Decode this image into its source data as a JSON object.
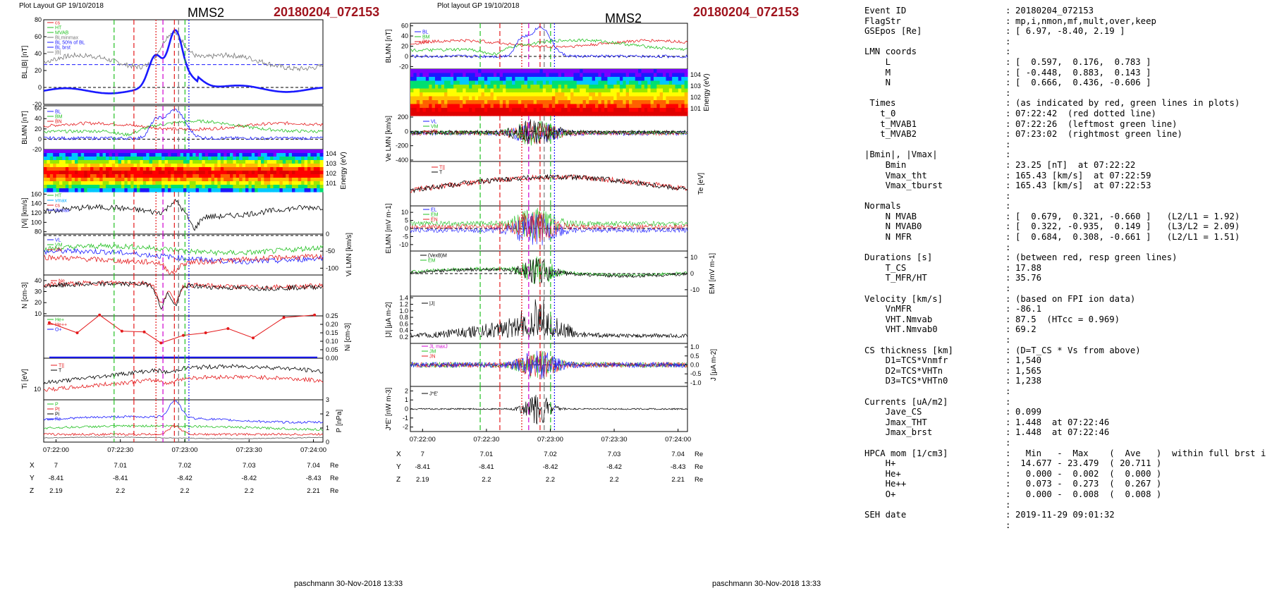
{
  "left": {
    "header_left": "Plot Layout GP 19/10/2018",
    "title": "MMS2",
    "event": "20180204_072153",
    "footer": "paschmann 30-Nov-2018 13:33"
  },
  "right": {
    "header_left": "Plot layout GP 19/10/2018",
    "title": "MMS2",
    "event": "20180204_072153",
    "footer": "paschmann 30-Nov-2018 13:33"
  },
  "colors": {
    "red": "#e41a1c",
    "green": "#22c022",
    "blue": "#1a1aff",
    "magenta": "#d000d0",
    "black": "#000000",
    "grey": "#777777"
  },
  "time_ticks": [
    "07:22:00",
    "07:22:30",
    "07:23:00",
    "07:23:30",
    "07:24:00"
  ],
  "ephemeris_left": {
    "X": {
      "label": "X",
      "vals": [
        "7",
        "7.01",
        "7.02",
        "7.03",
        "7.04"
      ],
      "unit": "Re"
    },
    "Y": {
      "label": "Y",
      "vals": [
        "-8.41",
        "-8.41",
        "-8.42",
        "-8.42",
        "-8.43"
      ],
      "unit": "Re"
    },
    "Z": {
      "label": "Z",
      "vals": [
        "2.19",
        "2.2",
        "2.2",
        "2.2",
        "2.21"
      ],
      "unit": "Re"
    }
  },
  "ephemeris_right": {
    "X": {
      "label": "X",
      "vals": [
        "7",
        "7.01",
        "7.02",
        "7.03",
        "7.04"
      ],
      "unit": "Re"
    },
    "Y": {
      "label": "Y",
      "vals": [
        "-8.41",
        "-8.41",
        "-8.42",
        "-8.42",
        "-8.43"
      ],
      "unit": "Re"
    },
    "Z": {
      "label": "Z",
      "vals": [
        "2.19",
        "2.2",
        "2.2",
        "2.2",
        "2.21"
      ],
      "unit": "Re"
    }
  },
  "chart_data": [
    {
      "type": "line",
      "panel": "left-1",
      "ylabel": "BL,|B| [nT]",
      "ylim": [
        -20,
        80
      ],
      "yticks": [
        -20,
        0,
        20,
        40,
        60,
        80
      ],
      "legend": [
        "cs",
        "HT",
        "MVAB",
        "BLminmax",
        "BL 50% of BL",
        "BL brst",
        "|B|"
      ]
    },
    {
      "type": "line",
      "panel": "left-2",
      "ylabel": "BLMN [nT]",
      "ylim": [
        -20,
        65
      ],
      "yticks": [
        -20,
        0,
        20,
        40,
        60
      ],
      "legend": [
        "BL",
        "BM",
        "BN"
      ]
    },
    {
      "type": "heatmap",
      "panel": "left-3",
      "ylabel": "Energy (eV)",
      "yticks": [
        "10^1",
        "10^2",
        "10^3",
        "10^4"
      ]
    },
    {
      "type": "line",
      "panel": "left-4",
      "ylabel": "|Vi| [km/s]",
      "ylim": [
        75,
        165
      ],
      "yticks": [
        80,
        100,
        120,
        140,
        160
      ],
      "legend": [
        "HT",
        "vmax",
        "cs",
        "dvmax"
      ]
    },
    {
      "type": "line",
      "panel": "left-5",
      "ylabel": "Vi LMN [km/s]",
      "ylim": [
        -120,
        0
      ],
      "yticks": [
        0,
        -50,
        -100
      ],
      "legend": [
        "VL",
        "VM",
        "VN"
      ]
    },
    {
      "type": "line",
      "panel": "left-6",
      "ylabel": "N [cm-3]",
      "ylim": [
        8,
        45
      ],
      "yticks": [
        10,
        20,
        30,
        40
      ],
      "legend": [
        "Ne",
        "Ni"
      ]
    },
    {
      "type": "line",
      "panel": "left-7",
      "ylabel": "Ni [cm-3]",
      "ylim": [
        0,
        0.25
      ],
      "yticks": [
        0.0,
        0.05,
        0.1,
        0.15,
        0.2,
        0.25
      ],
      "legend": [
        "He+",
        "He++",
        "O+"
      ]
    },
    {
      "type": "line",
      "panel": "left-8",
      "ylabel": "Ti [eV]",
      "ytick_labels": [
        "10^2"
      ],
      "legend": [
        "T||",
        "T"
      ]
    },
    {
      "type": "line",
      "panel": "left-9",
      "ylabel": "P [nPa]",
      "ylim": [
        0,
        3
      ],
      "yticks": [
        0,
        1,
        2,
        3
      ],
      "legend": [
        "P",
        "Pt",
        "Pi",
        "Pe"
      ]
    },
    {
      "type": "line",
      "panel": "right-1",
      "ylabel": "BLMN [nT]",
      "ylim": [
        -25,
        65
      ],
      "yticks": [
        -20,
        0,
        20,
        40,
        60
      ],
      "legend": [
        "BL",
        "BM",
        "BN"
      ]
    },
    {
      "type": "heatmap",
      "panel": "right-2",
      "ylabel": "Energy (eV)",
      "yticks": [
        "10^1",
        "10^2",
        "10^3",
        "10^4"
      ]
    },
    {
      "type": "line",
      "panel": "right-3",
      "ylabel": "Ve LMN [km/s]",
      "ylim": [
        -420,
        220
      ],
      "yticks": [
        200,
        0,
        -200,
        -400
      ],
      "legend": [
        "VL",
        "VM",
        "VN"
      ]
    },
    {
      "type": "line",
      "panel": "right-4",
      "ylabel": "Te [eV]",
      "legend": [
        "T||",
        "T"
      ]
    },
    {
      "type": "line",
      "panel": "right-5",
      "ylabel": "ELMN [mV m-1]",
      "ylim": [
        -14,
        14
      ],
      "yticks": [
        10,
        5,
        0,
        -5,
        -10
      ],
      "legend": [
        "EL",
        "EM",
        "EN"
      ]
    },
    {
      "type": "line",
      "panel": "right-6",
      "ylabel": "EM [mV m-1]",
      "ylim": [
        -14,
        14
      ],
      "yticks": [
        10,
        0,
        -10
      ],
      "legend": [
        "(VexB)M",
        "EM"
      ]
    },
    {
      "type": "line",
      "panel": "right-7",
      "ylabel": "|J| [μA m-2]",
      "ylim": [
        0,
        1.45
      ],
      "yticks": [
        0.2,
        0.4,
        0.6,
        0.8,
        1.0,
        1.2,
        1.4
      ],
      "legend": [
        "|J|"
      ]
    },
    {
      "type": "line",
      "panel": "right-8",
      "ylabel": "J [μA m-2]",
      "ylim": [
        -1.2,
        1.2
      ],
      "yticks": [
        1.0,
        0.5,
        0.0,
        -0.5,
        -1.0
      ],
      "legend": [
        "JL maxJ",
        "JM",
        "JN"
      ]
    },
    {
      "type": "line",
      "panel": "right-9",
      "ylabel": "J*E' [nW m-3]",
      "ylim": [
        -2.5,
        2.5
      ],
      "yticks": [
        2,
        1,
        0,
        -1,
        -2
      ],
      "legend": [
        "J*E'"
      ]
    }
  ],
  "info": {
    "rows": [
      [
        "Event ID",
        ":",
        "20180204_072153"
      ],
      [
        "FlagStr",
        ":",
        "mp,i,nmon,mf,mult,over,keep"
      ],
      [
        "GSEpos [Re]",
        ":",
        "[ 6.97, -8.40, 2.19 ]"
      ],
      [
        "",
        ":",
        ""
      ],
      [
        "LMN coords",
        ":",
        ""
      ],
      [
        "    L",
        ":",
        "[  0.597,  0.176,  0.783 ]"
      ],
      [
        "    M",
        ":",
        "[ -0.448,  0.883,  0.143 ]"
      ],
      [
        "    N",
        ":",
        "[  0.666,  0.436, -0.606 ]"
      ],
      [
        "",
        ":",
        ""
      ],
      [
        " Times",
        ":",
        "(as indicated by red, green lines in plots)"
      ],
      [
        "   t_0",
        ":",
        "07:22:42  (red dotted line)"
      ],
      [
        "   t_MVAB1",
        ":",
        "07:22:26  (leftmost green line)"
      ],
      [
        "   t_MVAB2",
        ":",
        "07:23:02  (rightmost green line)"
      ],
      [
        "",
        ":",
        ""
      ],
      [
        "|Bmin|, |Vmax|",
        ":",
        ""
      ],
      [
        "    Bmin",
        ":",
        "23.25 [nT]  at 07:22:22"
      ],
      [
        "    Vmax_tht",
        ":",
        "165.43 [km/s]  at 07:22:59"
      ],
      [
        "    Vmax_tburst",
        ":",
        "165.43 [km/s]  at 07:22:53"
      ],
      [
        "",
        ":",
        ""
      ],
      [
        "Normals",
        ":",
        ""
      ],
      [
        "    N MVAB",
        ":",
        "[  0.679,  0.321, -0.660 ]   (L2/L1 = 1.92)"
      ],
      [
        "    N MVAB0",
        ":",
        "[  0.322, -0.935,  0.149 ]   (L3/L2 = 2.09)"
      ],
      [
        "    N MFR",
        ":",
        "[  0.684,  0.308, -0.661 ]   (L2/L1 = 1.51)"
      ],
      [
        "",
        ":",
        ""
      ],
      [
        "Durations [s]",
        ":",
        "(between red, resp green lines)"
      ],
      [
        "    T_CS",
        ":",
        "17.88"
      ],
      [
        "    T_MFR/HT",
        ":",
        "35.76"
      ],
      [
        "",
        ":",
        ""
      ],
      [
        "Velocity [km/s]",
        ":",
        "(based on FPI ion data)"
      ],
      [
        "    VnMFR",
        ":",
        "-86.1"
      ],
      [
        "    VHT.Nmvab",
        ":",
        "87.5  (HTcc = 0.969)"
      ],
      [
        "    VHT.Nmvab0",
        ":",
        "69.2"
      ],
      [
        "",
        ":",
        ""
      ],
      [
        "CS thickness [km]",
        ":",
        "(D=T_CS * Vs from above)"
      ],
      [
        "    D1=TCS*Vnmfr",
        ":",
        "1,540"
      ],
      [
        "    D2=TCS*VHTn",
        ":",
        "1,565"
      ],
      [
        "    D3=TCS*VHTn0",
        ":",
        "1,238"
      ],
      [
        "",
        ":",
        ""
      ],
      [
        "Currents [uA/m2]",
        ":",
        ""
      ],
      [
        "    Jave_CS",
        ":",
        "0.099"
      ],
      [
        "    Jmax_THT",
        ":",
        "1.448  at 07:22:46"
      ],
      [
        "    Jmax_brst",
        ":",
        "1.448  at 07:22:46"
      ],
      [
        "",
        ":",
        ""
      ],
      [
        "HPCA mom [1/cm3]",
        ":",
        "  Min   -  Max    (  Ave   )  within full brst int"
      ],
      [
        "    H+",
        ":",
        " 14.677 - 23.479  ( 20.711 )"
      ],
      [
        "    He+",
        ":",
        "  0.000 -  0.002  (  0.000 )"
      ],
      [
        "    He++",
        ":",
        "  0.073 -  0.273  (  0.267 )"
      ],
      [
        "    O+",
        ":",
        "  0.000 -  0.008  (  0.008 )"
      ],
      [
        "",
        ":",
        ""
      ],
      [
        "SEH date",
        ":",
        "2019-11-29 09:01:32"
      ],
      [
        "",
        ":",
        ""
      ]
    ]
  }
}
